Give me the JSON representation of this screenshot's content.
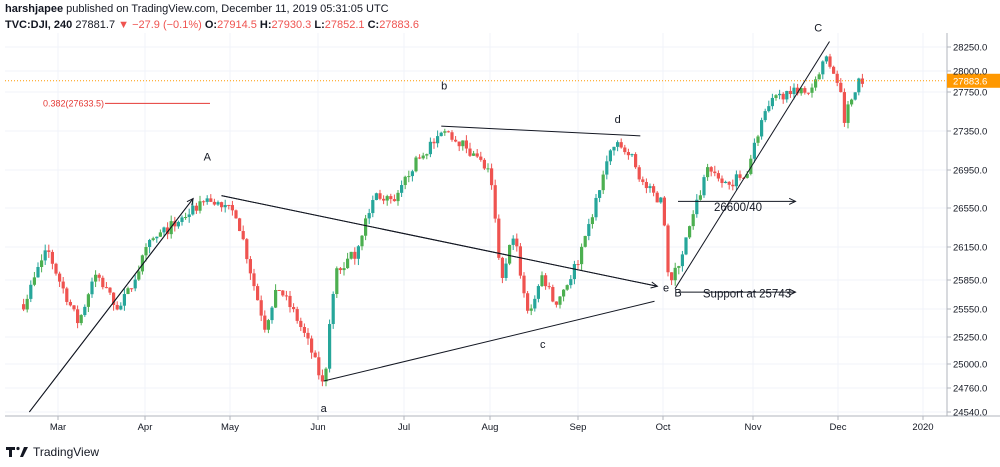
{
  "header": {
    "author": "harshjapee",
    "published": "published on TradingView.com, December 11, 2019 05:31:05 UTC",
    "symbol": "TVC:DJI, 240",
    "last": "27881.7",
    "change": "▼ −27.9 (−0.1%)",
    "o_label": "O:",
    "o_val": "27914.5",
    "h_label": "H:",
    "h_val": "27930.3",
    "l_label": "L:",
    "l_val": "27852.1",
    "c_label": "C:",
    "c_val": "27883.6"
  },
  "footer": {
    "brand": "TradingView",
    "logo_icon": "tradingview-logo-icon"
  },
  "colors": {
    "up": "#26a69a",
    "up_green": "#4caf50",
    "down": "#ef5350",
    "price_line": "#ff9800",
    "fib": "#e53935",
    "grid": "#f0f3fa",
    "axis_text": "#131722"
  },
  "chart_data": {
    "type": "candlestick",
    "x_tick_labels": [
      "Mar",
      "Apr",
      "May",
      "Jun",
      "Jul",
      "Aug",
      "Sep",
      "Oct",
      "Nov",
      "Dec",
      "2020"
    ],
    "y_tick_labels": [
      "28250.0",
      "28000.0",
      "27750.0",
      "27350.0",
      "26950.0",
      "26550.0",
      "26150.0",
      "25850.0",
      "25550.0",
      "25250.0",
      "25000.0",
      "24760.0",
      "24540.0"
    ],
    "ylim": [
      24540,
      28400
    ],
    "current_price_label": "27883.6",
    "current_price": 27883.6,
    "fib_label": "0.382(27633.5)",
    "fib_level": 27633.5,
    "path": [
      [
        "Feb-19",
        25600
      ],
      [
        "Feb-27",
        26150
      ],
      [
        "Mar-8",
        25400
      ],
      [
        "Mar-14",
        25900
      ],
      [
        "Mar-22",
        25550
      ],
      [
        "Apr-3",
        26200
      ],
      [
        "Apr-12",
        26400
      ],
      [
        "Apr-23",
        26650
      ],
      [
        "Apr-29",
        26550
      ],
      [
        "May-3",
        26500
      ],
      [
        "May-7",
        26050
      ],
      [
        "May-13",
        25350
      ],
      [
        "May-17",
        25800
      ],
      [
        "May-23",
        25500
      ],
      [
        "May-29",
        25100
      ],
      [
        "Jun-3",
        24760
      ],
      [
        "Jun-7",
        25900
      ],
      [
        "Jun-14",
        26100
      ],
      [
        "Jun-21",
        26700
      ],
      [
        "Jun-28",
        26600
      ],
      [
        "Jul-3",
        26950
      ],
      [
        "Jul-10",
        27200
      ],
      [
        "Jul-16",
        27350
      ],
      [
        "Jul-24",
        27150
      ],
      [
        "Jul-31",
        26900
      ],
      [
        "Aug-5",
        25800
      ],
      [
        "Aug-9",
        26300
      ],
      [
        "Aug-14",
        25500
      ],
      [
        "Aug-19",
        25900
      ],
      [
        "Aug-23",
        25600
      ],
      [
        "Aug-27",
        25800
      ],
      [
        "Sep-3",
        26150
      ],
      [
        "Sep-9",
        26800
      ],
      [
        "Sep-13",
        27200
      ],
      [
        "Sep-19",
        27150
      ],
      [
        "Sep-24",
        26800
      ],
      [
        "Oct-1",
        26600
      ],
      [
        "Oct-3",
        25750
      ],
      [
        "Oct-8",
        26150
      ],
      [
        "Oct-11",
        26450
      ],
      [
        "Oct-16",
        27000
      ],
      [
        "Oct-23",
        26800
      ],
      [
        "Oct-29",
        26950
      ],
      [
        "Nov-4",
        27450
      ],
      [
        "Nov-8",
        27650
      ],
      [
        "Nov-15",
        27800
      ],
      [
        "Nov-21",
        27750
      ],
      [
        "Nov-25",
        28050
      ],
      [
        "Nov-27",
        28150
      ],
      [
        "Dec-2",
        27800
      ],
      [
        "Dec-3",
        27450
      ],
      [
        "Dec-5",
        27650
      ],
      [
        "Dec-9",
        27900
      ],
      [
        "Dec-10",
        27880
      ]
    ],
    "annotations": {
      "wave_labels": [
        {
          "text": "A",
          "date": "Apr-23",
          "y": 27050
        },
        {
          "text": "a",
          "date": "Jun-3",
          "y": 24510
        },
        {
          "text": "b",
          "date": "Jul-15",
          "y": 27780
        },
        {
          "text": "c",
          "date": "Aug-19",
          "y": 25150
        },
        {
          "text": "d",
          "date": "Sep-15",
          "y": 27430
        },
        {
          "text": "e",
          "date": "Oct-2",
          "y": 25730
        },
        {
          "text": "B",
          "date": "Oct-6",
          "y": 25680
        },
        {
          "text": "C",
          "date": "Nov-24",
          "y": 28390
        }
      ],
      "text_labels": [
        {
          "text": "26600/40",
          "date": "Oct-26",
          "y": 26520
        },
        {
          "text": "Support at 25743",
          "date": "Oct-29",
          "y": 25670
        }
      ],
      "lines": [
        {
          "from": [
            "Feb-21",
            24540
          ],
          "to": [
            "Apr-18",
            26650
          ]
        },
        {
          "from": [
            "Apr-28",
            26680
          ],
          "to": [
            "Sep-29",
            25785
          ]
        },
        {
          "from": [
            "Jun-3",
            24830
          ],
          "to": [
            "Sep-28",
            25630
          ]
        },
        {
          "from": [
            "Jul-14",
            27400
          ],
          "to": [
            "Sep-23",
            27300
          ]
        },
        {
          "from": [
            "Oct-5",
            25760
          ],
          "to": [
            "Nov-28",
            28300
          ]
        }
      ],
      "arrows": [
        {
          "from": [
            "Oct-6",
            26620
          ],
          "to": [
            "Nov-16",
            26620
          ]
        },
        {
          "from": [
            "Oct-6",
            25725
          ],
          "to": [
            "Nov-16",
            25725
          ]
        }
      ]
    }
  }
}
